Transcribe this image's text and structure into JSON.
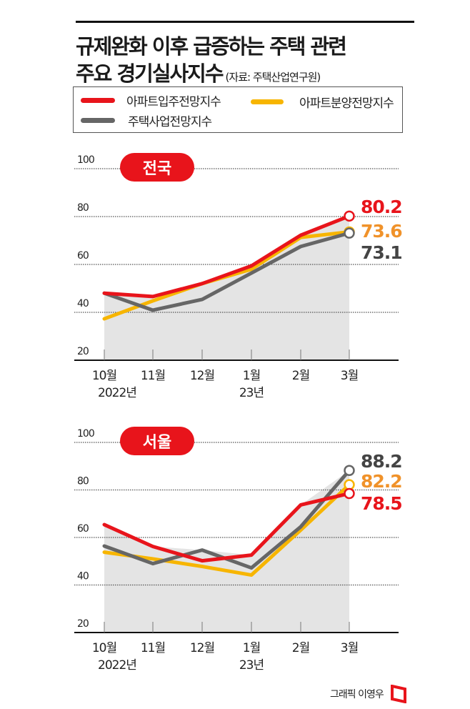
{
  "title": {
    "line1": "규제완화 이후 급증하는 주택 관련",
    "line2": "주요 경기실사지수",
    "source": "(자료: 주택산업연구원)"
  },
  "legend": [
    {
      "label": "아파트입주전망지수",
      "color": "#e8141b"
    },
    {
      "label": "아파트분양전망지수",
      "color": "#f7b500"
    },
    {
      "label": "주택사업전망지수",
      "color": "#666666"
    }
  ],
  "credit": "그래픽 이영우",
  "chart_data": [
    {
      "type": "line",
      "title": "전국",
      "categories": [
        "10월",
        "11월",
        "12월",
        "1월",
        "2월",
        "3월"
      ],
      "year_labels": [
        "2022년",
        "",
        "",
        "23년",
        "",
        ""
      ],
      "yticks": [
        100,
        80,
        60,
        40,
        20
      ],
      "ylim": [
        20,
        100
      ],
      "grid": true,
      "series": [
        {
          "name": "아파트입주전망지수",
          "color": "#e8141b",
          "label_color": "#e8141b",
          "values": [
            48,
            46.6,
            52,
            59.4,
            72.2,
            80.2
          ],
          "end_label": "80.2"
        },
        {
          "name": "아파트분양전망지수",
          "color": "#f7b500",
          "label_color": "#f0922a",
          "values": [
            37.3,
            44.8,
            52,
            58,
            71.3,
            73.6
          ],
          "end_label": "73.6"
        },
        {
          "name": "주택사업전망지수",
          "color": "#666666",
          "label_color": "#444444",
          "values": [
            48,
            40.9,
            45.4,
            56.4,
            67.5,
            73.1
          ],
          "end_label": "73.1"
        }
      ]
    },
    {
      "type": "line",
      "title": "서울",
      "categories": [
        "10월",
        "11월",
        "12월",
        "1월",
        "2월",
        "3월"
      ],
      "year_labels": [
        "2022년",
        "",
        "",
        "23년",
        "",
        ""
      ],
      "yticks": [
        100,
        80,
        60,
        40,
        20
      ],
      "ylim": [
        20,
        100
      ],
      "grid": true,
      "series": [
        {
          "name": "아파트입주전망지수",
          "color": "#e8141b",
          "label_color": "#e8141b",
          "values": [
            65.4,
            56.2,
            50.2,
            52.6,
            73.7,
            78.5
          ],
          "end_label": "78.5"
        },
        {
          "name": "아파트분양전망지수",
          "color": "#f7b500",
          "label_color": "#f0922a",
          "values": [
            53.8,
            51,
            47.8,
            44.2,
            63.1,
            82.2
          ],
          "end_label": "82.2"
        },
        {
          "name": "주택사업전망지수",
          "color": "#666666",
          "label_color": "#444444",
          "values": [
            56.4,
            49,
            54.7,
            47.2,
            64.5,
            88.2
          ],
          "end_label": "88.2"
        }
      ]
    }
  ]
}
